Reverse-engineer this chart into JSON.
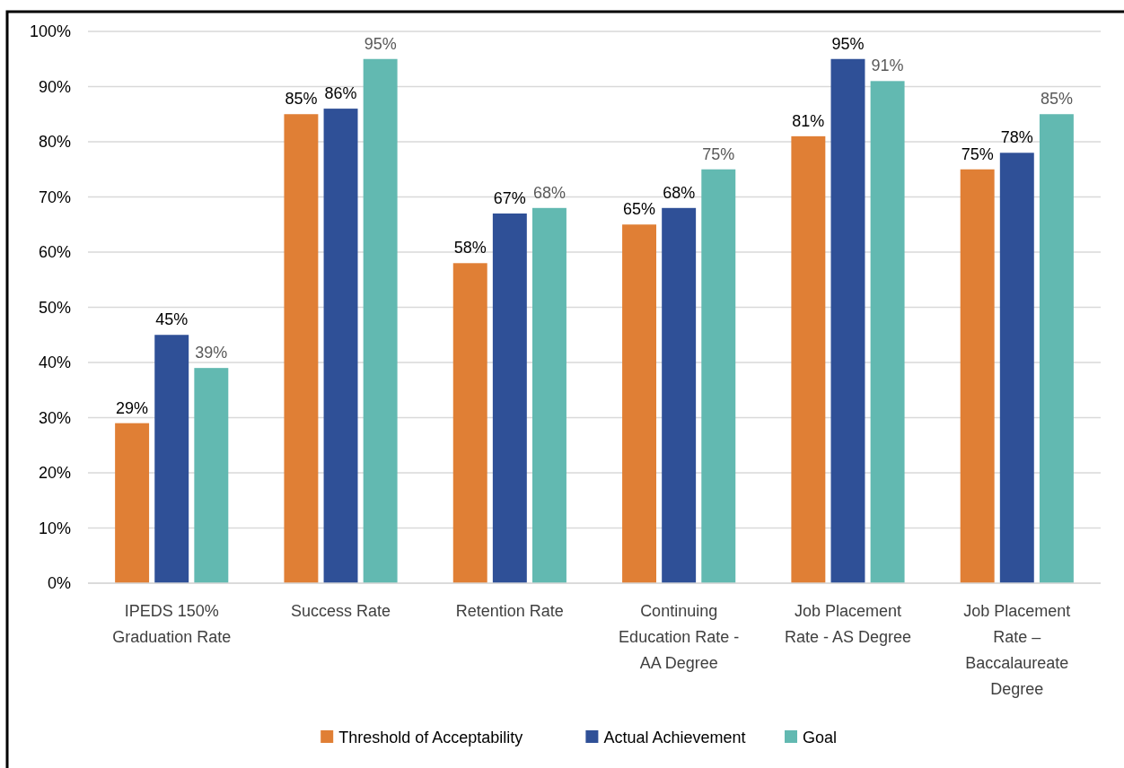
{
  "chart_data": {
    "type": "bar",
    "categories": [
      "IPEDS 150% Graduation Rate",
      "Success Rate",
      "Retention Rate",
      "Continuing Education Rate - AA Degree",
      "Job Placement Rate - AS Degree",
      "Job Placement Rate – Baccalaureate Degree"
    ],
    "series": [
      {
        "name": "Threshold of Acceptability",
        "color": "#e07f35",
        "values": [
          29,
          85,
          58,
          65,
          81,
          75
        ],
        "value_labels": [
          "29%",
          "85%",
          "58%",
          "65%",
          "81%",
          "75%"
        ]
      },
      {
        "name": "Actual Achievement",
        "color": "#2f5097",
        "values": [
          45,
          86,
          67,
          68,
          95,
          78
        ],
        "value_labels": [
          "45%",
          "86%",
          "67%",
          "68%",
          "95%",
          "78%"
        ]
      },
      {
        "name": "Goal",
        "color": "#62b9b1",
        "values": [
          39,
          95,
          68,
          75,
          91,
          85
        ],
        "value_labels": [
          "39%",
          "95%",
          "68%",
          "75%",
          "91%",
          "85%"
        ]
      }
    ],
    "ylim": [
      0,
      100
    ],
    "yticks": [
      {
        "value": 0,
        "label": "0%"
      },
      {
        "value": 10,
        "label": "10%"
      },
      {
        "value": 20,
        "label": "20%"
      },
      {
        "value": 30,
        "label": "30%"
      },
      {
        "value": 40,
        "label": "40%"
      },
      {
        "value": 50,
        "label": "50%"
      },
      {
        "value": 60,
        "label": "60%"
      },
      {
        "value": 70,
        "label": "70%"
      },
      {
        "value": 80,
        "label": "80%"
      },
      {
        "value": 90,
        "label": "90%"
      },
      {
        "value": 100,
        "label": "100%"
      }
    ],
    "grid": "y",
    "legend": "bottom"
  }
}
